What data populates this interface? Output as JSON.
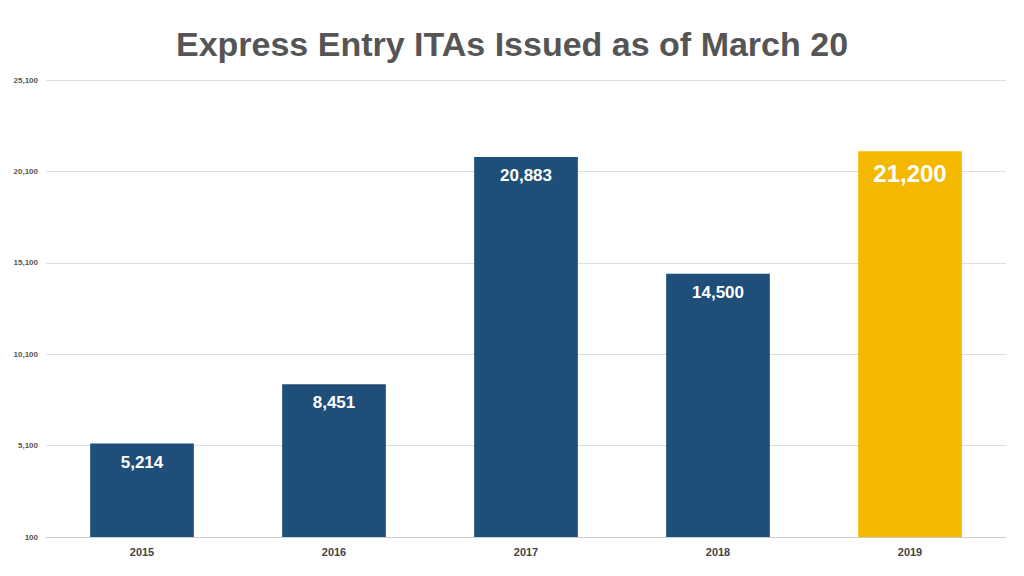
{
  "chart_data": {
    "type": "bar",
    "title": "Express Entry ITAs Issued as of March 20",
    "categories": [
      "2015",
      "2016",
      "2017",
      "2018",
      "2019"
    ],
    "values": [
      5214,
      8451,
      20883,
      14500,
      21200
    ],
    "value_labels": [
      "5,214",
      "8,451",
      "20,883",
      "14,500",
      "21,200"
    ],
    "colors": [
      "#1f4e79",
      "#1f4e79",
      "#1f4e79",
      "#1f4e79",
      "#f5b800"
    ],
    "ylim": [
      100,
      25100
    ],
    "yticks": [
      100,
      {
        "value": 5100,
        "label": "5,100"
      },
      {
        "value": 10100,
        "label": "10,100"
      },
      {
        "value": 15100,
        "label": "15,100"
      },
      {
        "value": 20100,
        "label": "20,100"
      },
      {
        "value": 25100,
        "label": "25,100"
      }
    ],
    "grid": true,
    "data_labels": true
  }
}
